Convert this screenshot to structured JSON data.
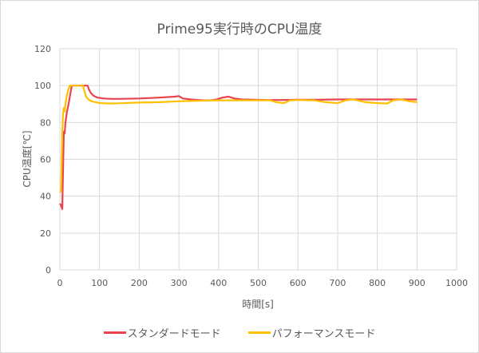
{
  "chart_data": {
    "type": "line",
    "title": "Prime95実行時のCPU温度",
    "xlabel": "時間[s]",
    "ylabel": "CPU温度[℃]",
    "xlim": [
      0,
      1000
    ],
    "ylim": [
      0,
      120
    ],
    "xticks": [
      0,
      100,
      200,
      300,
      400,
      500,
      600,
      700,
      800,
      900,
      1000
    ],
    "yticks": [
      0,
      20,
      40,
      60,
      80,
      100,
      120
    ],
    "grid": true,
    "legend_position": "bottom",
    "series": [
      {
        "name": "スタンダードモード",
        "color": "#E8434F",
        "x": [
          0,
          3,
          6,
          8,
          10,
          12,
          14,
          18,
          22,
          26,
          30,
          35,
          70,
          73,
          78,
          85,
          95,
          110,
          130,
          150,
          200,
          250,
          290,
          300,
          310,
          330,
          360,
          380,
          395,
          410,
          425,
          440,
          460,
          490,
          520,
          560,
          600,
          650,
          700,
          750,
          800,
          850,
          900
        ],
        "y": [
          36,
          35,
          33,
          55,
          75,
          74,
          80,
          86,
          90,
          95,
          100,
          100,
          100,
          98,
          96,
          94.5,
          93.5,
          93,
          92.8,
          92.8,
          93,
          93.5,
          94,
          94.3,
          93,
          92.5,
          92,
          92,
          92.5,
          93.5,
          94,
          93,
          92.5,
          92.3,
          92.2,
          92.2,
          92.3,
          92.3,
          92.5,
          92.5,
          92.5,
          92.5,
          92.5
        ]
      },
      {
        "name": "パフォーマンスモード",
        "color": "#FFC000",
        "x": [
          0,
          3,
          6,
          8,
          10,
          12,
          14,
          16,
          20,
          25,
          30,
          58,
          62,
          66,
          72,
          80,
          90,
          100,
          130,
          150,
          200,
          250,
          300,
          350,
          400,
          450,
          500,
          530,
          545,
          565,
          580,
          600,
          640,
          670,
          700,
          720,
          740,
          770,
          800,
          825,
          840,
          860,
          880,
          900
        ],
        "y": [
          42,
          43,
          75,
          85,
          88,
          86,
          90,
          93,
          97,
          100,
          100,
          100,
          97,
          94,
          92.5,
          91.5,
          91,
          90.5,
          90.3,
          90.4,
          90.8,
          91,
          91.5,
          91.8,
          92,
          92,
          92,
          92,
          91,
          90.5,
          92,
          92.2,
          92,
          91,
          90.5,
          92,
          92.5,
          91,
          90.5,
          90.3,
          92,
          92.5,
          91.5,
          91
        ]
      }
    ]
  }
}
